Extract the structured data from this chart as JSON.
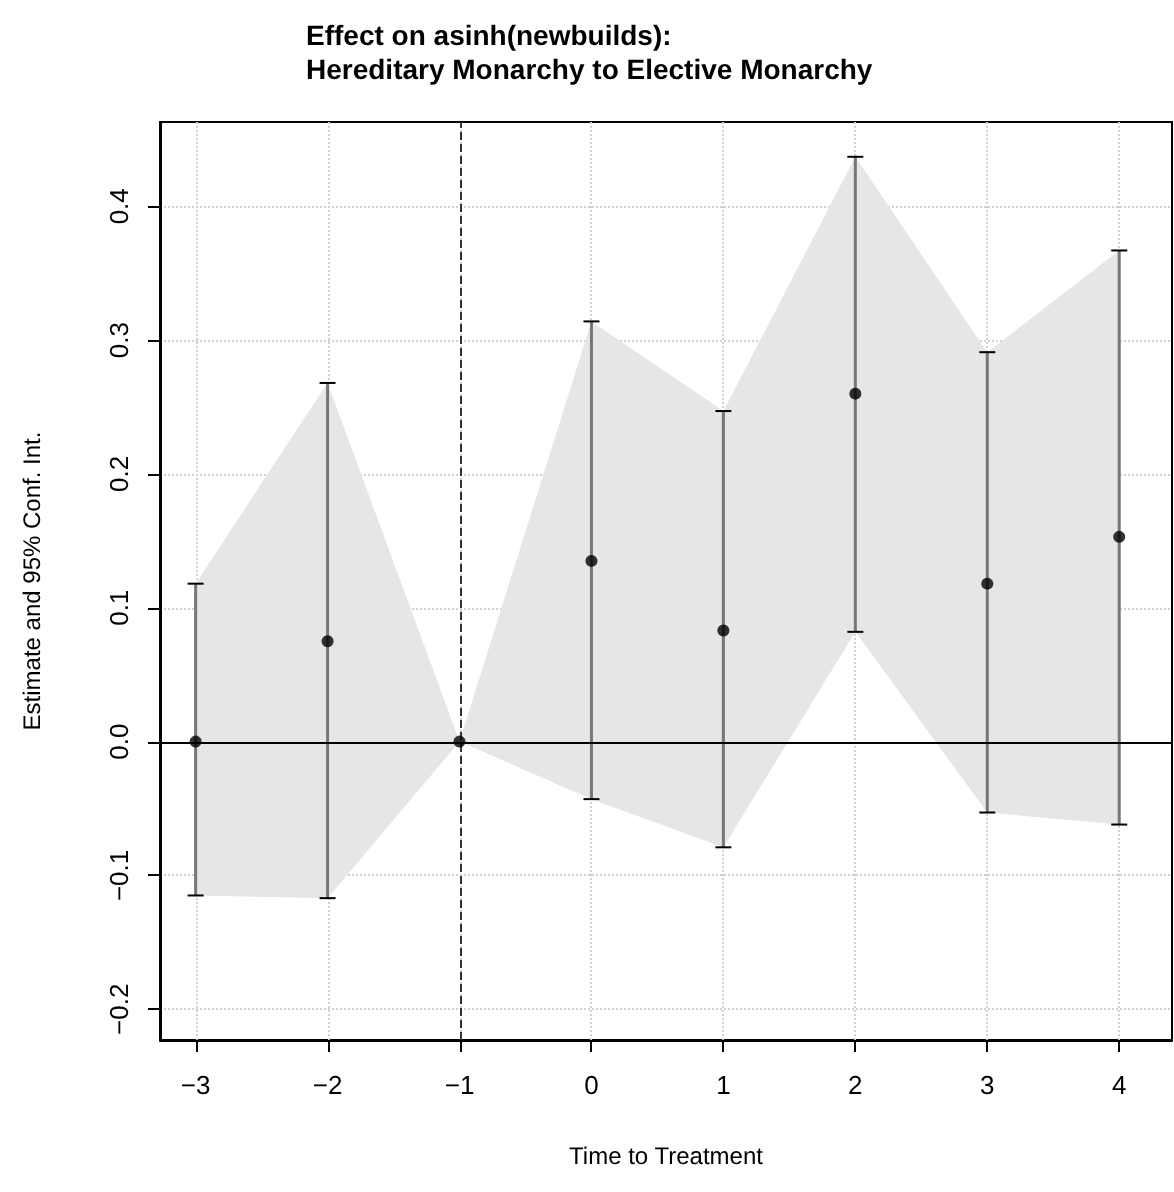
{
  "chart_data": {
    "type": "scatter",
    "title": "Effect on asinh(newbuilds):\nHereditary Monarchy to Elective Monarchy",
    "xlabel": "Time to Treatment",
    "ylabel": "Estimate and 95% Conf. Int.",
    "x": [
      -3,
      -2,
      -1,
      0,
      1,
      2,
      3,
      4
    ],
    "series": [
      {
        "color": "#000000",
        "values": [
          0,
          0.075,
          0,
          0.135,
          0.083,
          0.26,
          0.118,
          0.153
        ],
        "errors": [
          [
            -0.115,
            0.118
          ],
          [
            -0.117,
            0.268
          ],
          null,
          [
            -0.043,
            0.314
          ],
          [
            -0.079,
            0.247
          ],
          [
            0.082,
            0.437
          ],
          [
            -0.053,
            0.291
          ],
          [
            -0.062,
            0.367
          ]
        ],
        "lower": [
          -0.115,
          -0.117,
          0,
          -0.043,
          -0.079,
          0.082,
          -0.053,
          -0.062
        ],
        "upper": [
          0.118,
          0.268,
          0,
          0.314,
          0.247,
          0.437,
          0.291,
          0.367
        ]
      }
    ],
    "xlim": [
      -3.27,
      4.4
    ],
    "xticks": [
      {
        "value": -3,
        "label": "−3"
      },
      {
        "value": -2,
        "label": "−2"
      },
      {
        "value": -1,
        "label": "−1"
      },
      0,
      1,
      2,
      3,
      4
    ],
    "ylim": [
      -0.223,
      0.463
    ],
    "yticks": [
      {
        "value": -0.2,
        "label": "−0.2"
      },
      {
        "value": -0.1,
        "label": "−0.1"
      },
      {
        "value": 0,
        "label": "0.0"
      },
      0.1,
      0.2,
      0.3,
      0.4
    ],
    "ref_lines": [
      {
        "axis": "x",
        "value": -1,
        "color": "#333333",
        "line_style": "dashed"
      },
      {
        "axis": "y",
        "value": 0,
        "color": "#000000",
        "line_style": "solid"
      }
    ],
    "grid": true,
    "marker": "circle"
  }
}
